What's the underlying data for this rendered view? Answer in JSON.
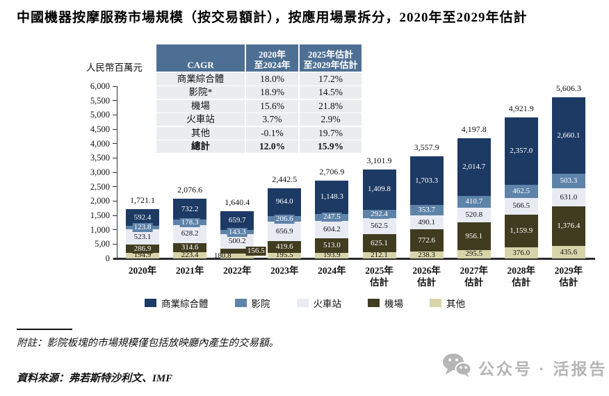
{
  "title": "中國機器按摩服務市場規模（按交易額計），按應用場景拆分，2020年至2029年估計",
  "chart_data": {
    "type": "bar",
    "stacked": true,
    "title": "中國機器按摩服務市場規模（按交易額計），按應用場景拆分，2020年至2029年估計",
    "y_axis": {
      "unit": "人民幣百萬元",
      "tick_labels": [
        "0",
        "5,00",
        "1,000",
        "1,500",
        "2,000",
        "2,500",
        "3,000",
        "3,500",
        "4,000",
        "4,500",
        "5,000",
        "5,500",
        "6,000"
      ],
      "range": [
        0,
        6000
      ],
      "grid": false
    },
    "categories": [
      [
        "2020年"
      ],
      [
        "2021年"
      ],
      [
        "2022年"
      ],
      [
        "2023年"
      ],
      [
        "2024年"
      ],
      [
        "2025年",
        "估計"
      ],
      [
        "2026年",
        "估計"
      ],
      [
        "2027年",
        "估計"
      ],
      [
        "2028年",
        "估計"
      ],
      [
        "2029年",
        "估計"
      ]
    ],
    "totals": [
      1721.1,
      2076.6,
      1640.4,
      2442.5,
      2706.9,
      3101.9,
      3557.9,
      4197.8,
      4921.9,
      5606.3
    ],
    "series": [
      {
        "name": "商業綜合體",
        "color": "#1d3a64",
        "label_color": "#ffffff",
        "values": [
          592.4,
          732.2,
          659.7,
          964.0,
          1148.3,
          1409.8,
          1703.3,
          2014.7,
          2357.0,
          2660.1
        ]
      },
      {
        "name": "影院",
        "color": "#5e83a9",
        "label_color": "#ffffff",
        "values": [
          123.8,
          178.3,
          143.3,
          206.6,
          247.5,
          292.4,
          353.7,
          410.7,
          462.5,
          503.3
        ]
      },
      {
        "name": "火車站",
        "color": "#e8ecf2",
        "label_color": "#111111",
        "values": [
          523.1,
          628.2,
          500.2,
          656.9,
          604.2,
          562.5,
          490.1,
          520.8,
          566.5,
          631.0
        ]
      },
      {
        "name": "機場",
        "color": "#403c20",
        "label_color": "#ffffff",
        "values": [
          286.9,
          314.6,
          156.5,
          419.6,
          513.0,
          625.1,
          772.6,
          956.1,
          1159.9,
          1376.4
        ]
      },
      {
        "name": "其他",
        "color": "#d8d4aa",
        "label_color": "#111111",
        "values": [
          194.9,
          223.4,
          180.8,
          195.5,
          193.9,
          212.1,
          238.3,
          295.5,
          376.0,
          435.6
        ]
      }
    ],
    "stack_order_bottom_to_top": [
      "其他",
      "機場",
      "火車站",
      "影院",
      "商業綜合體"
    ],
    "legend": {
      "position": "bottom",
      "items": [
        "商業綜合體",
        "影院",
        "火車站",
        "機場",
        "其他"
      ]
    },
    "label_offsets": {
      "2": {
        "機場": [
          27,
          0
        ],
        "其他": [
          -21,
          0
        ]
      }
    }
  },
  "cagr_table": {
    "header": [
      [
        "CAGR"
      ],
      [
        "2020年",
        "至2024年"
      ],
      [
        "2025年估計",
        "至2029年估計"
      ]
    ],
    "rows": [
      [
        "商業綜合體",
        "18.0%",
        "17.2%"
      ],
      [
        "影院*",
        "18.9%",
        "14.5%"
      ],
      [
        "機場",
        "15.6%",
        "21.8%"
      ],
      [
        "火車站",
        "3.7%",
        "2.9%"
      ],
      [
        "其他",
        "-0.1%",
        "19.7%"
      ],
      [
        "總計",
        "12.0%",
        "15.9%"
      ]
    ],
    "header_bg": "#4e6f94",
    "row_bg": "#eaecee"
  },
  "notes": {
    "note": "附註：影院板塊的市場規模僅包括放映廳內產生的交易額。",
    "source": "資料來源：弗若斯特沙利文、IMF"
  },
  "watermark": {
    "icon": "wechat-icon",
    "text": "公众号 · 活报告",
    "color": "#b5b5b5"
  }
}
